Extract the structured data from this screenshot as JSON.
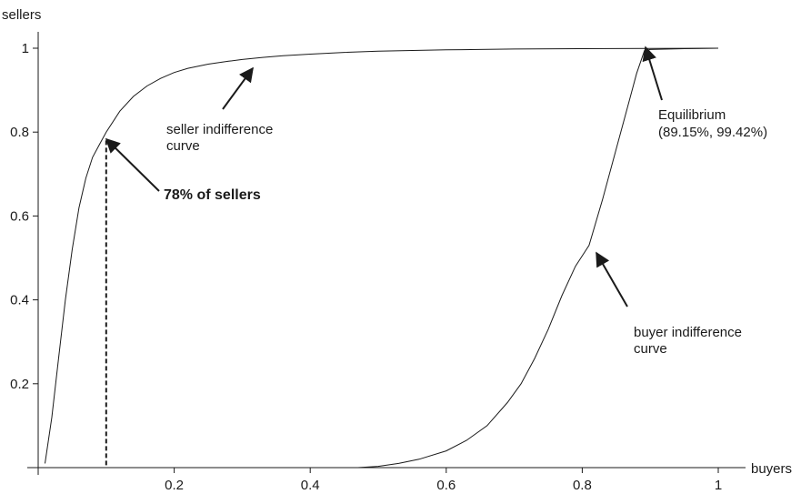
{
  "chart_data": {
    "type": "line",
    "xlabel": "buyers",
    "ylabel": "sellers",
    "xlim": [
      0,
      1
    ],
    "ylim": [
      0,
      1
    ],
    "x_ticks": [
      {
        "value": 0.2,
        "label": "0.2"
      },
      {
        "value": 0.4,
        "label": "0.4"
      },
      {
        "value": 0.6,
        "label": "0.6"
      },
      {
        "value": 0.8,
        "label": "0.8"
      },
      {
        "value": 1,
        "label": "1"
      }
    ],
    "y_ticks": [
      {
        "value": 0.2,
        "label": "0.2"
      },
      {
        "value": 0.4,
        "label": "0.4"
      },
      {
        "value": 0.6,
        "label": "0.6"
      },
      {
        "value": 0.8,
        "label": "0.8"
      },
      {
        "value": 1,
        "label": "1"
      }
    ],
    "grid": false,
    "series": [
      {
        "label_lines": [
          "seller indifference",
          "curve"
        ],
        "x": [
          0.01,
          0.02,
          0.03,
          0.04,
          0.05,
          0.06,
          0.07,
          0.08,
          0.09,
          0.1,
          0.12,
          0.14,
          0.16,
          0.18,
          0.2,
          0.22,
          0.25,
          0.28,
          0.3,
          0.33,
          0.36,
          0.4,
          0.45,
          0.5,
          0.6,
          0.7,
          0.8,
          0.9,
          1.0
        ],
        "y": [
          0.01,
          0.12,
          0.26,
          0.4,
          0.52,
          0.62,
          0.69,
          0.74,
          0.77,
          0.8,
          0.85,
          0.885,
          0.91,
          0.928,
          0.942,
          0.952,
          0.962,
          0.969,
          0.973,
          0.978,
          0.982,
          0.986,
          0.99,
          0.993,
          0.996,
          0.998,
          0.999,
          0.9995,
          1.0
        ]
      },
      {
        "label_lines": [
          "buyer indifference",
          "curve"
        ],
        "x": [
          0.47,
          0.5,
          0.53,
          0.56,
          0.6,
          0.63,
          0.66,
          0.69,
          0.71,
          0.73,
          0.75,
          0.77,
          0.79,
          0.81,
          0.83,
          0.85,
          0.87,
          0.88,
          0.8915,
          0.9,
          0.95,
          1.0
        ],
        "y": [
          0.0,
          0.003,
          0.01,
          0.02,
          0.04,
          0.065,
          0.1,
          0.155,
          0.2,
          0.26,
          0.33,
          0.41,
          0.48,
          0.53,
          0.64,
          0.76,
          0.88,
          0.94,
          0.9942,
          0.997,
          0.999,
          1.0
        ]
      }
    ],
    "annotations": {
      "sellers_share": {
        "label": "78% of sellers",
        "x": 0.1,
        "y": 0.78
      },
      "equilibrium": {
        "label_lines": [
          "Equilibrium",
          "(89.15%, 99.42%)"
        ],
        "x": 0.8915,
        "y": 0.9942
      }
    }
  }
}
